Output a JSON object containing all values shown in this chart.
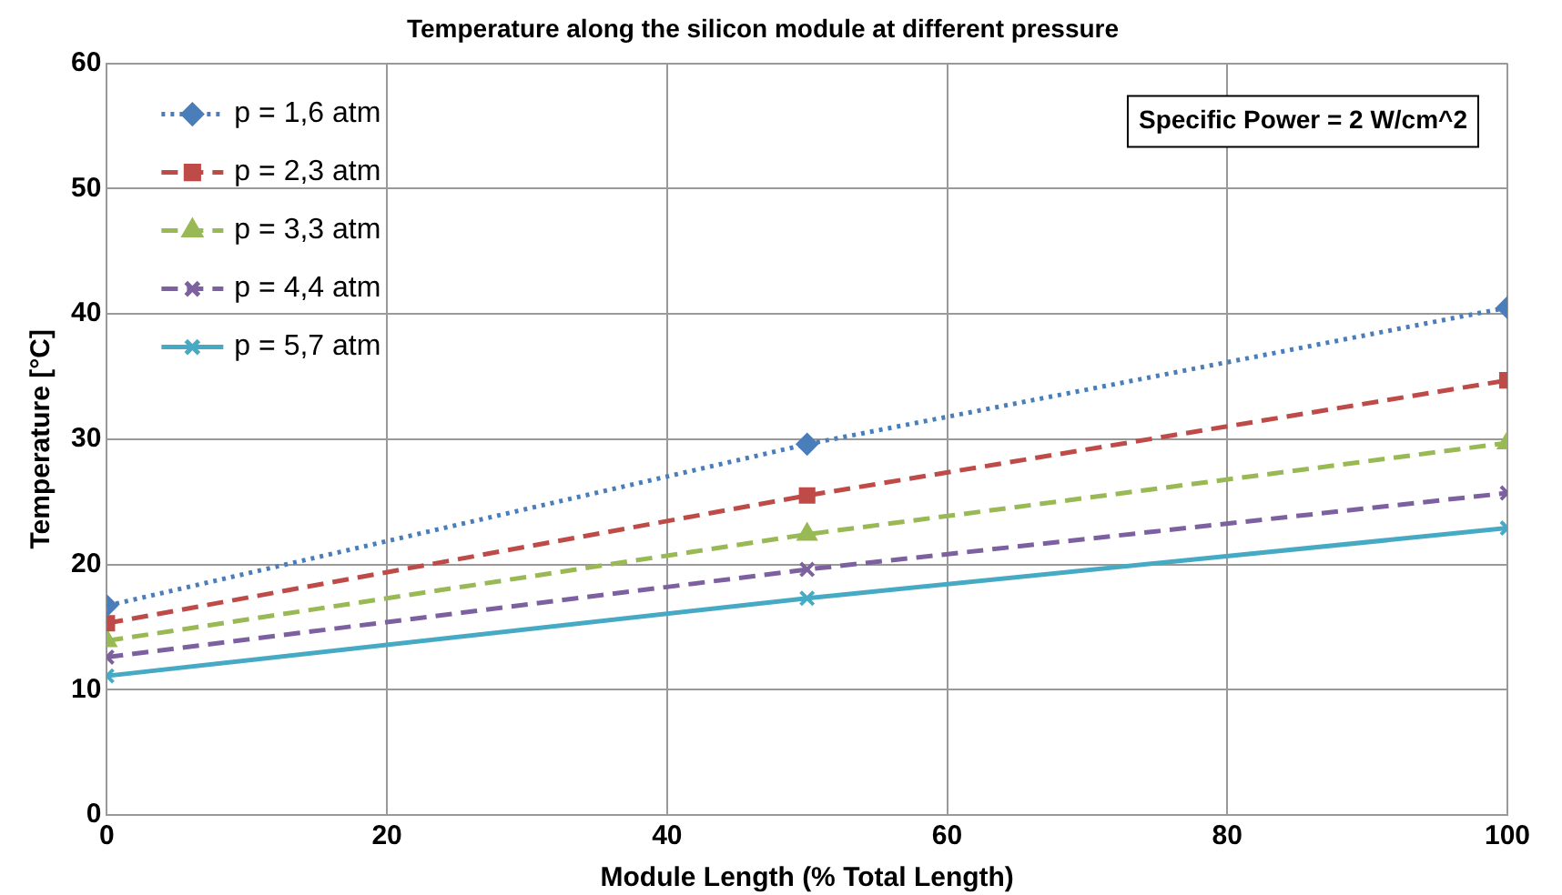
{
  "chart_data": {
    "type": "line",
    "title": "Temperature along the silicon module at different pressure",
    "xlabel": "Module Length (% Total Length)",
    "ylabel": "Temperature [°C]",
    "x": [
      0,
      50,
      100
    ],
    "series": [
      {
        "name": "p = 1,6 atm",
        "color": "#4a7ebb",
        "values": [
          16.7,
          29.6,
          40.5
        ],
        "marker": "diamond",
        "line_style": "dotted"
      },
      {
        "name": "p = 2,3 atm",
        "color": "#be4b48",
        "values": [
          15.3,
          25.5,
          34.7
        ],
        "marker": "square",
        "line_style": "dashed"
      },
      {
        "name": "p = 3,3 atm",
        "color": "#98b954",
        "values": [
          13.9,
          22.4,
          29.7
        ],
        "marker": "triangle",
        "line_style": "dashed"
      },
      {
        "name": "p = 4,4 atm",
        "color": "#7d60a0",
        "values": [
          12.6,
          19.6,
          25.7
        ],
        "marker": "cross",
        "line_style": "dashed"
      },
      {
        "name": "p = 5,7 atm",
        "color": "#46aac5",
        "values": [
          11.1,
          17.3,
          22.9
        ],
        "marker": "cross",
        "line_style": "solid"
      }
    ],
    "xlim": [
      0,
      100
    ],
    "xticks": [
      0,
      20,
      40,
      60,
      80,
      100
    ],
    "ylim": [
      0,
      60
    ],
    "yticks": [
      0,
      10,
      20,
      30,
      40,
      50,
      60
    ],
    "grid": true,
    "legend": "top left",
    "annotations": [
      "Specific Power = 2 W/cm^2"
    ]
  }
}
